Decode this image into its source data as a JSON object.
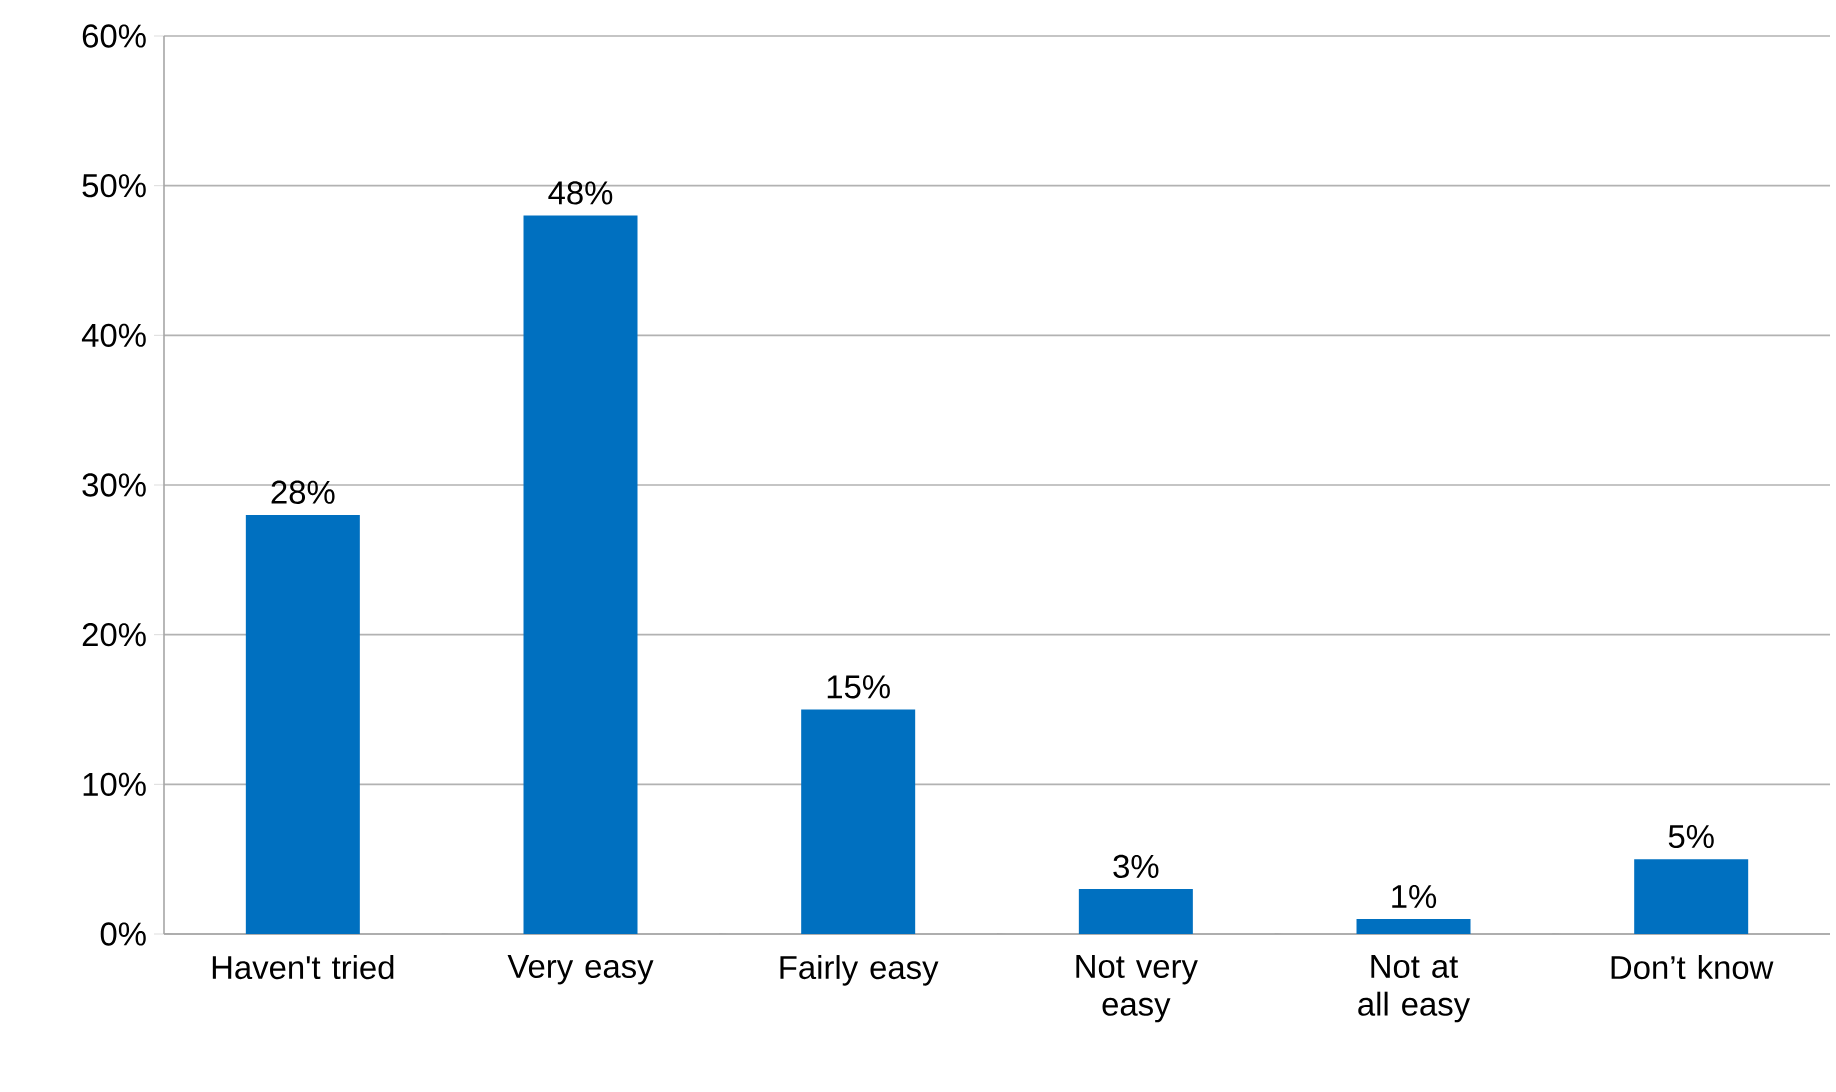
{
  "chart_data": {
    "type": "bar",
    "categories": [
      "Haven't tried",
      "Very easy",
      "Fairly easy",
      "Not very easy",
      "Not at all easy",
      "Don’t know"
    ],
    "values": [
      28,
      48,
      15,
      3,
      1,
      5
    ],
    "value_labels": [
      "28%",
      "48%",
      "15%",
      "3%",
      "1%",
      "5%"
    ],
    "color": "#0070c0",
    "ylim": [
      0,
      60
    ],
    "yticks": [
      {
        "value": 0,
        "label": "0%"
      },
      {
        "value": 10,
        "label": "10%"
      },
      {
        "value": 20,
        "label": "20%"
      },
      {
        "value": 30,
        "label": "30%"
      },
      {
        "value": 40,
        "label": "40%"
      },
      {
        "value": 50,
        "label": "50%"
      },
      {
        "value": 60,
        "label": "60%"
      }
    ],
    "grid": "y"
  }
}
